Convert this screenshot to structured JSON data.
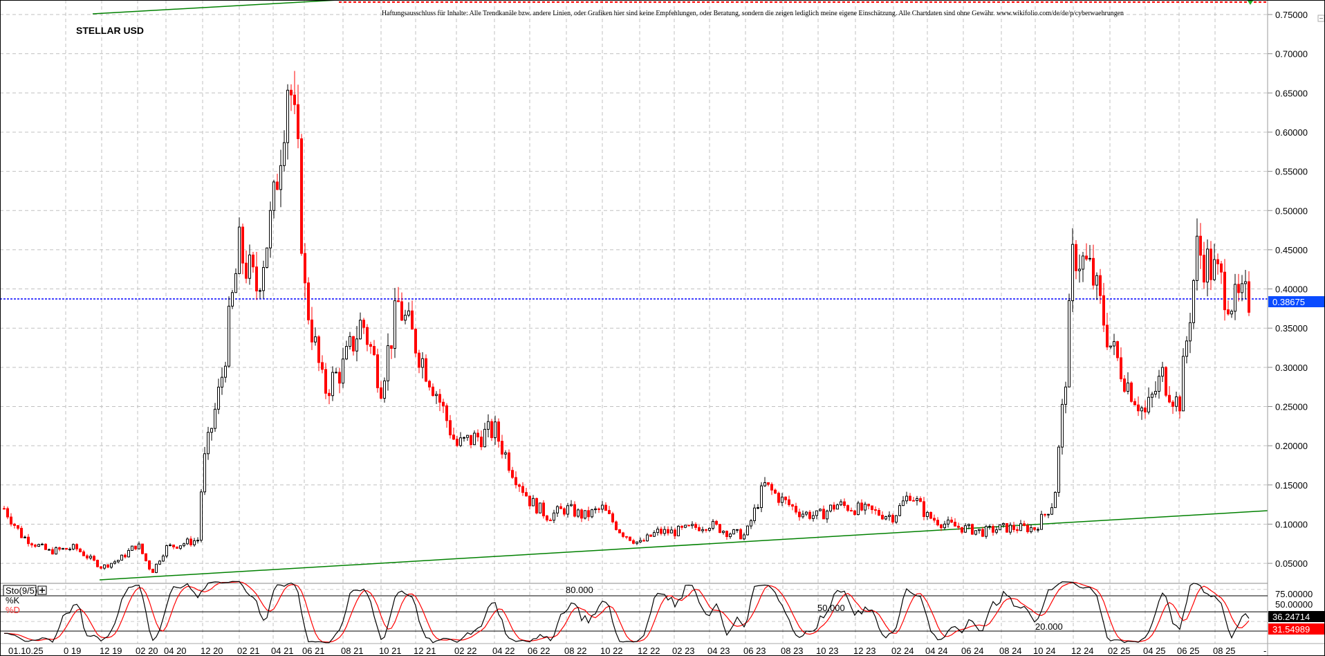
{
  "chart_data": {
    "type": "candlestick",
    "title": "STELLAR USD",
    "disclaimer": "Haftungsausschluss für Inhalte: Alle Trendkanäle bzw. andere Linien, oder Grafiken hier sind keine Empfehlungen, oder Beratung, sondern die zeigen lediglich meine eigene Einschätzung. Alle Chartdaten sind ohne Gewähr. www.wikifolio.com/de/de/p/cyberwaehrungen",
    "ylim": [
      0.03,
      0.77
    ],
    "y_ticks": [
      "0.75000",
      "0.70000",
      "0.65000",
      "0.60000",
      "0.55000",
      "0.50000",
      "0.45000",
      "0.40000",
      "0.35000",
      "0.30000",
      "0.25000",
      "0.20000",
      "0.15000",
      "0.10000",
      "0.05000"
    ],
    "x_tick_labels": [
      "01.10.25",
      "0 19",
      "12 19",
      "02 20",
      "04 20",
      "12 20",
      "02 21",
      "04 21",
      "06 21",
      "08 21",
      "10 21",
      "12 21",
      "02 22",
      "04 22",
      "06 22",
      "08 22",
      "10 22",
      "12 22",
      "02 23",
      "04 23",
      "06 23",
      "08 23",
      "10 23",
      "12 23",
      "02 24",
      "04 24",
      "06 24",
      "08 24",
      "10 24",
      "12 24",
      "02 25",
      "04 25",
      "06 25",
      "08 25",
      "-"
    ],
    "grid": true,
    "current_price": "0.38675",
    "colors": {
      "up": "#000000",
      "down": "#ff0000",
      "trendline": "#008000",
      "current_price_line": "#0000ff",
      "resistance_line": "#ff0000"
    },
    "approx_closes": [
      {
        "date": "2019-01",
        "close": 0.12
      },
      {
        "date": "2019-03",
        "close": 0.085
      },
      {
        "date": "2019-06",
        "close": 0.065
      },
      {
        "date": "2019-09",
        "close": 0.07
      },
      {
        "date": "2019-12",
        "close": 0.045
      },
      {
        "date": "2020-01",
        "close": 0.055
      },
      {
        "date": "2020-02",
        "close": 0.075
      },
      {
        "date": "2020-03",
        "close": 0.038
      },
      {
        "date": "2020-04",
        "close": 0.07
      },
      {
        "date": "2020-11",
        "close": 0.08
      },
      {
        "date": "2020-12",
        "close": 0.17
      },
      {
        "date": "2021-01",
        "close": 0.28
      },
      {
        "date": "2021-02",
        "close": 0.45
      },
      {
        "date": "2021-03",
        "close": 0.4
      },
      {
        "date": "2021-04",
        "close": 0.5
      },
      {
        "date": "2021-05",
        "close": 0.68
      },
      {
        "date": "2021-05-20",
        "close": 0.55
      },
      {
        "date": "2021-06",
        "close": 0.4
      },
      {
        "date": "2021-07",
        "close": 0.27
      },
      {
        "date": "2021-08",
        "close": 0.3
      },
      {
        "date": "2021-09",
        "close": 0.36
      },
      {
        "date": "2021-10",
        "close": 0.28
      },
      {
        "date": "2021-11",
        "close": 0.38
      },
      {
        "date": "2021-12",
        "close": 0.33
      },
      {
        "date": "2022-01",
        "close": 0.27
      },
      {
        "date": "2022-02",
        "close": 0.2
      },
      {
        "date": "2022-03",
        "close": 0.21
      },
      {
        "date": "2022-04",
        "close": 0.22
      },
      {
        "date": "2022-05",
        "close": 0.17
      },
      {
        "date": "2022-06",
        "close": 0.13
      },
      {
        "date": "2022-07",
        "close": 0.11
      },
      {
        "date": "2022-08",
        "close": 0.12
      },
      {
        "date": "2022-09",
        "close": 0.11
      },
      {
        "date": "2022-10",
        "close": 0.12
      },
      {
        "date": "2022-11",
        "close": 0.09
      },
      {
        "date": "2022-12",
        "close": 0.075
      },
      {
        "date": "2023-01",
        "close": 0.09
      },
      {
        "date": "2023-02",
        "close": 0.09
      },
      {
        "date": "2023-03",
        "close": 0.095
      },
      {
        "date": "2023-04",
        "close": 0.1
      },
      {
        "date": "2023-05",
        "close": 0.09
      },
      {
        "date": "2023-06",
        "close": 0.085
      },
      {
        "date": "2023-07",
        "close": 0.15
      },
      {
        "date": "2023-08",
        "close": 0.13
      },
      {
        "date": "2023-09",
        "close": 0.115
      },
      {
        "date": "2023-10",
        "close": 0.11
      },
      {
        "date": "2023-11",
        "close": 0.125
      },
      {
        "date": "2023-12",
        "close": 0.12
      },
      {
        "date": "2024-01",
        "close": 0.115
      },
      {
        "date": "2024-02",
        "close": 0.11
      },
      {
        "date": "2024-03",
        "close": 0.14
      },
      {
        "date": "2024-04",
        "close": 0.11
      },
      {
        "date": "2024-05",
        "close": 0.1
      },
      {
        "date": "2024-06",
        "close": 0.095
      },
      {
        "date": "2024-07",
        "close": 0.09
      },
      {
        "date": "2024-08",
        "close": 0.095
      },
      {
        "date": "2024-09",
        "close": 0.095
      },
      {
        "date": "2024-10",
        "close": 0.095
      },
      {
        "date": "2024-11",
        "close": 0.13
      },
      {
        "date": "2024-11-20",
        "close": 0.3
      },
      {
        "date": "2024-12",
        "close": 0.45
      },
      {
        "date": "2025-01",
        "close": 0.42
      },
      {
        "date": "2025-02",
        "close": 0.33
      },
      {
        "date": "2025-03",
        "close": 0.28
      },
      {
        "date": "2025-04",
        "close": 0.24
      },
      {
        "date": "2025-05",
        "close": 0.29
      },
      {
        "date": "2025-06",
        "close": 0.25
      },
      {
        "date": "2025-07",
        "close": 0.45
      },
      {
        "date": "2025-08",
        "close": 0.42
      },
      {
        "date": "2025-09",
        "close": 0.38
      },
      {
        "date": "2025-09-20",
        "close": 0.387
      }
    ]
  },
  "indicator": {
    "name": "Sto(9/5)",
    "expand_icon": "plus-box-icon",
    "k_label": "%K",
    "d_label": "%D",
    "levels": [
      "80.000",
      "50.000",
      "20.000"
    ],
    "axis_labels": [
      "75.00000",
      "50.00000"
    ],
    "k_value": "36.24714",
    "d_value": "31.54989"
  }
}
